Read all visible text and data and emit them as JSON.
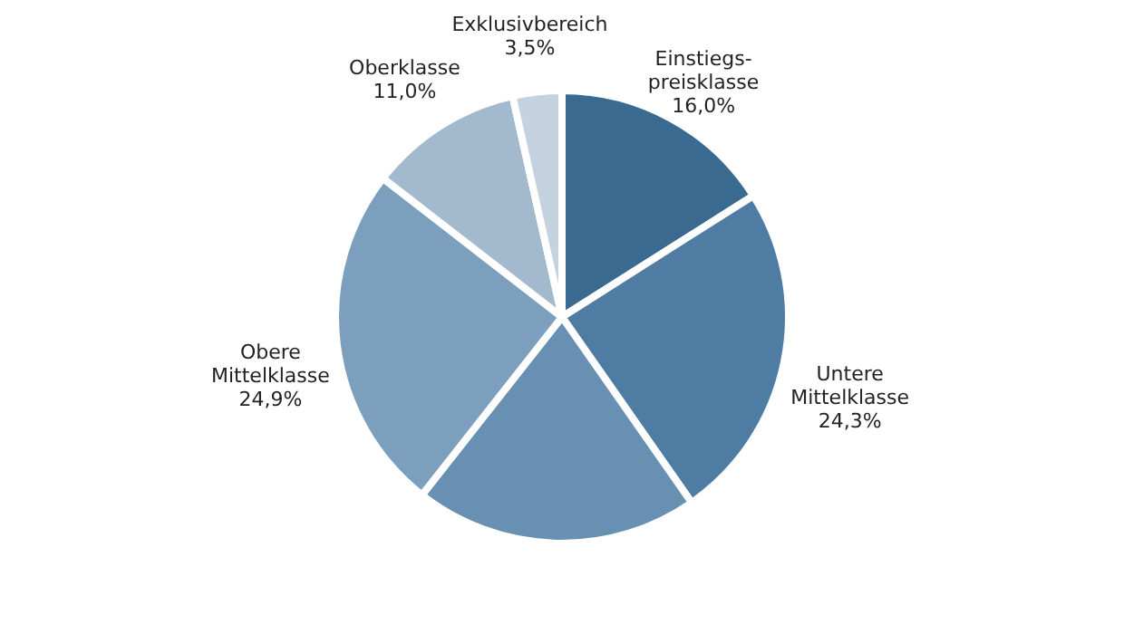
{
  "chart_data": {
    "type": "pie",
    "categories": [
      "Einstiegs-\npreisklasse",
      "Untere\nMittelklasse",
      null,
      "Obere\nMittelklasse",
      "Oberklasse",
      "Exklusivbereich"
    ],
    "values": [
      16.0,
      24.3,
      20.3,
      24.9,
      11.0,
      3.5
    ],
    "value_labels": [
      "16,0%",
      "24,3%",
      null,
      "24,9%",
      "11,0%",
      "3,5%"
    ],
    "colors": [
      "#3a6a90",
      "#4f7ca2",
      "#6890b2",
      "#7c9fbd",
      "#a2b9ce",
      "#c4d2df"
    ],
    "legend": false
  }
}
